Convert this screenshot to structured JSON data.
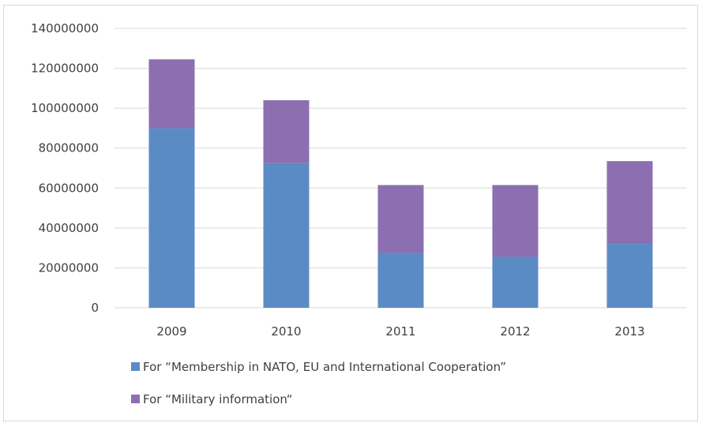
{
  "chart_data": {
    "type": "bar",
    "stacked": true,
    "categories": [
      "2009",
      "2010",
      "2011",
      "2012",
      "2013"
    ],
    "series": [
      {
        "name": "For “Membership in NATO, EU and International Cooperation”",
        "color": "#5b8bc4",
        "values": [
          90000000,
          72500000,
          27500000,
          25500000,
          32000000
        ]
      },
      {
        "name": "For “Military information“",
        "color": "#8b6fb0",
        "values": [
          34500000,
          31500000,
          34000000,
          36000000,
          41500000
        ]
      }
    ],
    "ylim": [
      0,
      140000000
    ],
    "yticks": [
      "0",
      "20000000",
      "40000000",
      "60000000",
      "80000000",
      "100000000",
      "120000000",
      "140000000"
    ],
    "grid": true,
    "legend_position": "bottom",
    "title": "",
    "xlabel": "",
    "ylabel": ""
  }
}
